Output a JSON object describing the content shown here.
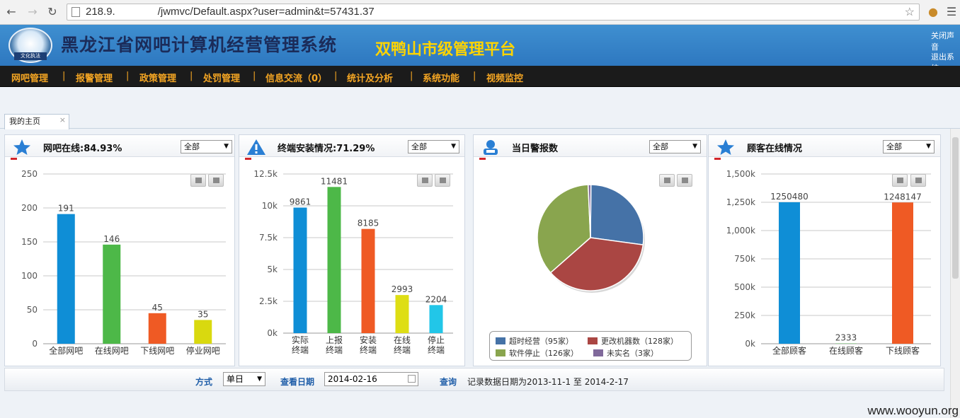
{
  "browser": {
    "url": "218.9.    /jwmvc/Default.aspx?user=admin&t=57431.37",
    "back_icon": "arrow-left-icon",
    "forward_icon": "arrow-right-icon",
    "reload_icon": "reload-icon"
  },
  "header": {
    "title": "黑龙江省网吧计算机经营管理系统",
    "subtitle": "双鸭山市级管理平台",
    "logo_text": "文化执法",
    "link_close": "关闭声音",
    "link_logout": "退出系统"
  },
  "menu": [
    "网吧管理",
    "报警管理",
    "政策管理",
    "处罚管理",
    "信息交流（0）",
    "统计及分析",
    "系统功能",
    "视频监控"
  ],
  "tabs": [
    {
      "label": "我的主页",
      "close": "×"
    }
  ],
  "panels": [
    {
      "title": "网吧在线:84.93%",
      "filter": "全部"
    },
    {
      "title": "终端安装情况:71.29%",
      "filter": "全部"
    },
    {
      "title": "当日警报数",
      "filter": "全部"
    },
    {
      "title": "顾客在线情况",
      "filter": "全部"
    }
  ],
  "chart_data": [
    {
      "type": "bar",
      "categories": [
        "全部网吧",
        "在线网吧",
        "下线网吧",
        "停业网吧"
      ],
      "values": [
        191,
        146,
        45,
        35
      ],
      "colors": [
        "#0f8ed6",
        "#4db848",
        "#ef5a24",
        "#d9d90f"
      ],
      "ylim": [
        0,
        250
      ],
      "yticks": [
        "0",
        "50",
        "100",
        "150",
        "200",
        "250"
      ],
      "grid": true
    },
    {
      "type": "bar",
      "categories": [
        "实际\n终端",
        "上报\n终端",
        "安装\n终端",
        "在线\n终端",
        "停止\n终端"
      ],
      "values": [
        9861,
        11481,
        8185,
        2993,
        2204
      ],
      "colors": [
        "#0f8ed6",
        "#4db848",
        "#ef5a24",
        "#dede14",
        "#22c6e8"
      ],
      "ylim": [
        0,
        12500
      ],
      "yticks": [
        "0k",
        "2.5k",
        "5k",
        "7.5k",
        "10k",
        "12.5k"
      ],
      "grid": true
    },
    {
      "type": "pie",
      "labels": [
        "超时经营（95家）",
        "更改机器数（128家）",
        "软件停止（126家）",
        "未实名（3家）"
      ],
      "values": [
        95,
        128,
        126,
        3
      ],
      "colors": [
        "#4572a7",
        "#aa4643",
        "#89a54e",
        "#80699b"
      ],
      "legend": "bottom"
    },
    {
      "type": "bar",
      "categories": [
        "全部顾客",
        "在线顾客",
        "下线顾客"
      ],
      "values": [
        1250480,
        2333,
        1248147
      ],
      "colors": [
        "#0f8ed6",
        "#4db848",
        "#ef5a24"
      ],
      "ylim": [
        0,
        1500000
      ],
      "yticks": [
        "0k",
        "250k",
        "500k",
        "750k",
        "1,000k",
        "1,250k",
        "1,500k"
      ],
      "grid": true
    }
  ],
  "query_bar": {
    "mode_label": "方式",
    "mode_value": "单日",
    "date_label": "查看日期",
    "date_value": "2014-02-16",
    "query_button": "查询",
    "range_text": "记录数据日期为2013-11-1 至 2014-2-17"
  },
  "watermark": "www.wooyun.org"
}
